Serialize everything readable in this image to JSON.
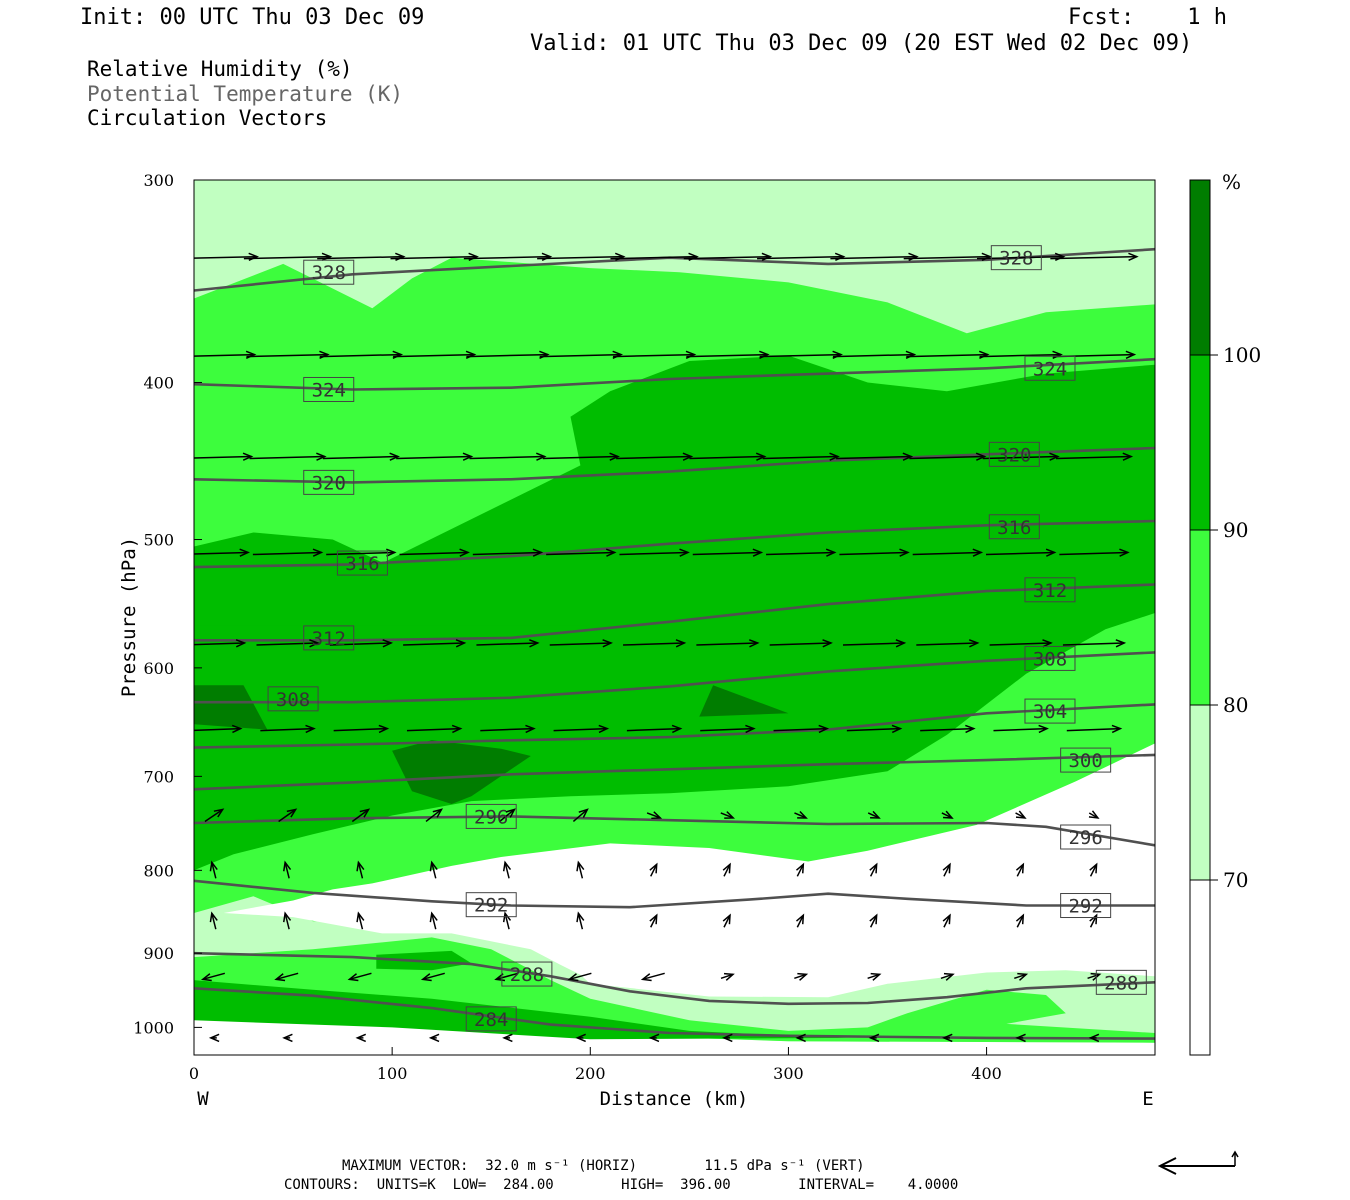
{
  "header": {
    "init": "Init: 00 UTC Thu 03 Dec 09",
    "fcst": "Fcst:    1 h",
    "valid": "Valid: 01 UTC Thu 03 Dec 09 (20 EST Wed 02 Dec 09)"
  },
  "legend": {
    "rh": "Relative Humidity (%)",
    "theta": "Potential Temperature (K)",
    "vectors": "Circulation Vectors"
  },
  "colors": {
    "rh_lt70": "#ffffff",
    "rh_70_80": "#c1ffc1",
    "rh_80_90": "#3dfd3d",
    "rh_90_100": "#00bd00",
    "rh_ge100": "#007d00",
    "theta_line": "#505050",
    "vector": "#000000"
  },
  "chart_data": {
    "type": "heatmap",
    "xlabel": "Distance (km)",
    "ylabel": "Pressure (hPa)",
    "xlim": [
      0,
      485
    ],
    "ylim": [
      1040,
      300
    ],
    "y_scale": "log-pressure",
    "x_ticks": [
      "0",
      "100",
      "200",
      "300",
      "400"
    ],
    "y_ticks": [
      "300",
      "400",
      "500",
      "600",
      "700",
      "800",
      "900",
      "1000"
    ],
    "x_endpoints": {
      "left": "W",
      "right": "E"
    },
    "colorbar": {
      "unit": "%",
      "levels": [
        "70",
        "80",
        "90",
        "100"
      ]
    },
    "rh_regions": [
      {
        "level": "rh_70_80",
        "points": [
          [
            0,
            300
          ],
          [
            485,
            300
          ],
          [
            485,
            1040
          ],
          [
            0,
            1040
          ]
        ]
      },
      {
        "level": "rh_80_90",
        "points": [
          [
            0,
            355
          ],
          [
            45,
            338
          ],
          [
            90,
            360
          ],
          [
            110,
            345
          ],
          [
            130,
            335
          ],
          [
            200,
            340
          ],
          [
            245,
            342
          ],
          [
            300,
            347
          ],
          [
            350,
            357
          ],
          [
            390,
            373
          ],
          [
            430,
            362
          ],
          [
            485,
            358
          ],
          [
            485,
            875
          ],
          [
            330,
            860
          ],
          [
            260,
            845
          ],
          [
            200,
            850
          ],
          [
            130,
            860
          ],
          [
            60,
            860
          ],
          [
            30,
            830
          ],
          [
            0,
            850
          ]
        ]
      },
      {
        "level": "rh_lt70",
        "points": [
          [
            485,
            668
          ],
          [
            445,
            705
          ],
          [
            395,
            750
          ],
          [
            340,
            778
          ],
          [
            310,
            790
          ],
          [
            260,
            775
          ],
          [
            210,
            770
          ],
          [
            155,
            785
          ],
          [
            130,
            795
          ],
          [
            90,
            815
          ],
          [
            70,
            822
          ],
          [
            50,
            835
          ],
          [
            15,
            850
          ],
          [
            50,
            855
          ],
          [
            95,
            875
          ],
          [
            130,
            875
          ],
          [
            170,
            895
          ],
          [
            185,
            915
          ],
          [
            195,
            928
          ],
          [
            200,
            940
          ],
          [
            260,
            957
          ],
          [
            320,
            958
          ],
          [
            350,
            940
          ],
          [
            400,
            925
          ],
          [
            440,
            922
          ],
          [
            485,
            930
          ]
        ]
      },
      {
        "level": "rh_lt70",
        "points": [
          [
            0,
            980
          ],
          [
            100,
            992
          ],
          [
            200,
            1010
          ],
          [
            300,
            1020
          ],
          [
            485,
            1022
          ],
          [
            485,
            1040
          ],
          [
            0,
            1040
          ]
        ]
      },
      {
        "level": "rh_80_90",
        "points": [
          [
            0,
            905
          ],
          [
            60,
            895
          ],
          [
            120,
            880
          ],
          [
            150,
            895
          ],
          [
            180,
            935
          ],
          [
            200,
            960
          ],
          [
            250,
            990
          ],
          [
            300,
            1005
          ],
          [
            340,
            1000
          ],
          [
            360,
            980
          ],
          [
            400,
            948
          ],
          [
            430,
            955
          ],
          [
            440,
            980
          ],
          [
            410,
            995
          ],
          [
            485,
            1008
          ],
          [
            485,
            1022
          ],
          [
            300,
            1020
          ],
          [
            200,
            1010
          ],
          [
            100,
            992
          ],
          [
            0,
            980
          ]
        ]
      },
      {
        "level": "rh_90_100",
        "points": [
          [
            0,
            935
          ],
          [
            60,
            948
          ],
          [
            120,
            960
          ],
          [
            200,
            985
          ],
          [
            250,
            1005
          ],
          [
            300,
            1012
          ],
          [
            330,
            1015
          ],
          [
            200,
            1017
          ],
          [
            100,
            1000
          ],
          [
            0,
            990
          ]
        ]
      },
      {
        "level": "rh_90_100",
        "points": [
          [
            92,
            902
          ],
          [
            130,
            897
          ],
          [
            140,
            913
          ],
          [
            120,
            922
          ],
          [
            92,
            920
          ]
        ]
      },
      {
        "level": "rh_90_100",
        "points": [
          [
            195,
            450
          ],
          [
            190,
            420
          ],
          [
            210,
            405
          ],
          [
            250,
            388
          ],
          [
            300,
            385
          ],
          [
            340,
            400
          ],
          [
            380,
            405
          ],
          [
            430,
            395
          ],
          [
            485,
            390
          ],
          [
            485,
            555
          ],
          [
            460,
            568
          ],
          [
            420,
            605
          ],
          [
            380,
            660
          ],
          [
            350,
            695
          ],
          [
            300,
            710
          ],
          [
            240,
            717
          ],
          [
            190,
            720
          ],
          [
            140,
            725
          ],
          [
            100,
            740
          ],
          [
            60,
            760
          ],
          [
            20,
            782
          ],
          [
            0,
            800
          ],
          [
            0,
            505
          ],
          [
            30,
            495
          ],
          [
            70,
            500
          ],
          [
            100,
            520
          ],
          [
            120,
            535
          ],
          [
            140,
            535
          ],
          [
            170,
            520
          ],
          [
            190,
            500
          ],
          [
            205,
            500
          ],
          [
            205,
            520
          ],
          [
            210,
            545
          ],
          [
            190,
            555
          ],
          [
            170,
            565
          ],
          [
            150,
            580
          ],
          [
            120,
            590
          ],
          [
            80,
            590
          ],
          [
            0,
            590
          ]
        ]
      },
      {
        "level": "rh_90_100",
        "points": [
          [
            0,
            575
          ],
          [
            80,
            590
          ],
          [
            150,
            585
          ],
          [
            200,
            565
          ],
          [
            0,
            565
          ]
        ]
      },
      {
        "level": "rh_ge100",
        "points": [
          [
            0,
            615
          ],
          [
            25,
            615
          ],
          [
            37,
            655
          ],
          [
            0,
            650
          ]
        ]
      },
      {
        "level": "rh_ge100",
        "points": [
          [
            100,
            675
          ],
          [
            120,
            665
          ],
          [
            155,
            673
          ],
          [
            170,
            680
          ],
          [
            140,
            720
          ],
          [
            130,
            728
          ],
          [
            110,
            715
          ]
        ]
      },
      {
        "level": "rh_ge100",
        "points": [
          [
            262,
            615
          ],
          [
            285,
            630
          ],
          [
            300,
            640
          ],
          [
            255,
            643
          ]
        ]
      }
    ],
    "theta_contours": [
      {
        "label": "328",
        "points": [
          [
            0,
            351
          ],
          [
            80,
            343
          ],
          [
            160,
            339
          ],
          [
            240,
            335
          ],
          [
            320,
            338
          ],
          [
            400,
            336
          ],
          [
            485,
            331
          ]
        ]
      },
      {
        "label": "324",
        "points": [
          [
            0,
            401
          ],
          [
            80,
            404
          ],
          [
            160,
            403
          ],
          [
            240,
            398
          ],
          [
            320,
            395
          ],
          [
            400,
            392
          ],
          [
            485,
            387
          ]
        ]
      },
      {
        "label": "320",
        "points": [
          [
            0,
            459
          ],
          [
            80,
            461
          ],
          [
            160,
            459
          ],
          [
            240,
            454
          ],
          [
            320,
            447
          ],
          [
            400,
            443
          ],
          [
            485,
            439
          ]
        ]
      },
      {
        "label": "316",
        "points": [
          [
            0,
            520
          ],
          [
            80,
            518
          ],
          [
            160,
            512
          ],
          [
            240,
            503
          ],
          [
            320,
            495
          ],
          [
            400,
            490
          ],
          [
            485,
            487
          ]
        ]
      },
      {
        "label": "312",
        "points": [
          [
            0,
            577
          ],
          [
            80,
            577
          ],
          [
            160,
            575
          ],
          [
            240,
            562
          ],
          [
            320,
            548
          ],
          [
            400,
            538
          ],
          [
            485,
            533
          ]
        ]
      },
      {
        "label": "308",
        "points": [
          [
            0,
            630
          ],
          [
            80,
            630
          ],
          [
            160,
            626
          ],
          [
            240,
            616
          ],
          [
            320,
            603
          ],
          [
            400,
            594
          ],
          [
            485,
            587
          ]
        ]
      },
      {
        "label": "304",
        "points": [
          [
            0,
            672
          ],
          [
            80,
            669
          ],
          [
            160,
            665
          ],
          [
            240,
            662
          ],
          [
            320,
            655
          ],
          [
            400,
            640
          ],
          [
            485,
            632
          ]
        ]
      },
      {
        "label": "300",
        "points": [
          [
            0,
            713
          ],
          [
            80,
            706
          ],
          [
            160,
            698
          ],
          [
            240,
            693
          ],
          [
            320,
            688
          ],
          [
            400,
            684
          ],
          [
            485,
            679
          ]
        ]
      },
      {
        "label": "296",
        "points": [
          [
            0,
            748
          ],
          [
            80,
            743
          ],
          [
            160,
            741
          ],
          [
            240,
            745
          ],
          [
            320,
            749
          ],
          [
            400,
            748
          ],
          [
            430,
            752
          ],
          [
            485,
            772
          ]
        ]
      },
      {
        "label": "292",
        "points": [
          [
            0,
            812
          ],
          [
            60,
            826
          ],
          [
            120,
            836
          ],
          [
            160,
            841
          ],
          [
            220,
            843
          ],
          [
            280,
            834
          ],
          [
            320,
            827
          ],
          [
            360,
            833
          ],
          [
            420,
            841
          ],
          [
            485,
            841
          ]
        ]
      },
      {
        "label": "288",
        "points": [
          [
            0,
            900
          ],
          [
            80,
            905
          ],
          [
            140,
            914
          ],
          [
            180,
            930
          ],
          [
            220,
            950
          ],
          [
            260,
            963
          ],
          [
            300,
            967
          ],
          [
            340,
            966
          ],
          [
            380,
            958
          ],
          [
            420,
            946
          ],
          [
            485,
            938
          ]
        ]
      },
      {
        "label": "284",
        "points": [
          [
            0,
            946
          ],
          [
            60,
            956
          ],
          [
            120,
            973
          ],
          [
            180,
            996
          ],
          [
            240,
            1008
          ],
          [
            300,
            1012
          ],
          [
            400,
            1015
          ],
          [
            485,
            1016
          ]
        ]
      }
    ],
    "max_vector": "MAXIMUM VECTOR:  32.0 m s⁻¹ (HORIZ)        11.5 dPa s⁻¹ (VERT)",
    "contours_info": "CONTOURS:  UNITS=K  LOW=  284.00        HIGH=  396.00        INTERVAL=    4.0000"
  }
}
